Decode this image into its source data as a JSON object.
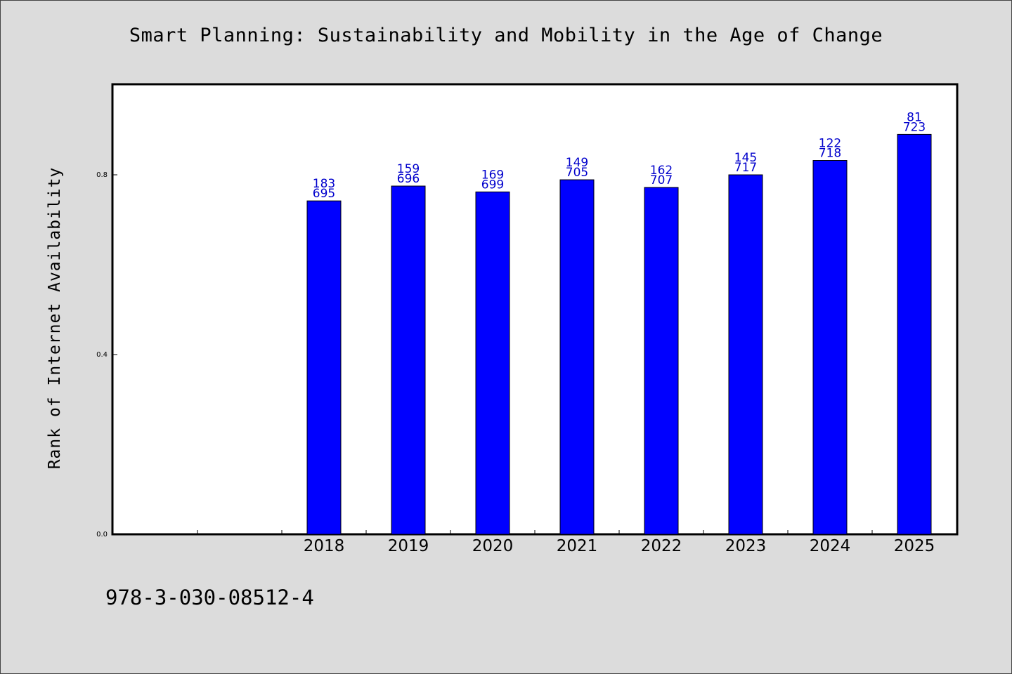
{
  "chart_data": {
    "type": "bar",
    "title": "Smart Planning: Sustainability and Mobility in the Age of Change",
    "ylabel": "Rank of Internet Availability",
    "xlabel": "",
    "categories": [
      "2018",
      "2019",
      "2020",
      "2021",
      "2022",
      "2023",
      "2024",
      "2025"
    ],
    "values": [
      0.742,
      0.775,
      0.762,
      0.789,
      0.772,
      0.8,
      0.832,
      0.89
    ],
    "bar_labels_top": [
      "183",
      "159",
      "169",
      "149",
      "162",
      "145",
      "122",
      "81"
    ],
    "bar_labels_bottom": [
      "695",
      "696",
      "699",
      "705",
      "707",
      "717",
      "718",
      "723"
    ],
    "y_ticks": [
      0.0,
      0.4,
      0.8
    ],
    "y_tick_labels": [
      "0.0",
      "0.4",
      "0.8"
    ],
    "ylim": [
      0,
      1.0
    ],
    "x_slots": 10,
    "first_category_slot": 2,
    "grid": false,
    "bar_color": "#0000ff",
    "label_color": "#0000cc"
  },
  "footer": {
    "isbn": "978-3-030-08512-4"
  }
}
